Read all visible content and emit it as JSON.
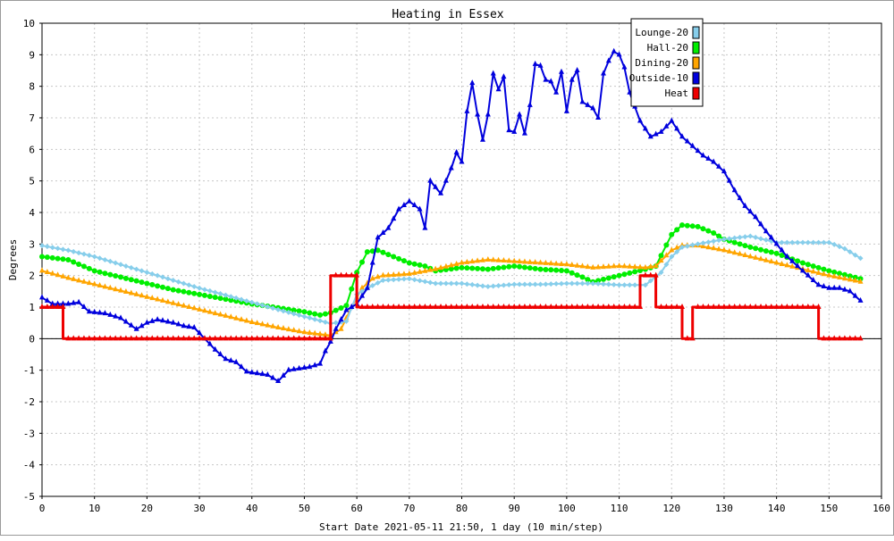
{
  "chart_data": {
    "type": "line",
    "title": "Heating in Essex",
    "xlabel": "Start Date 2021-05-11 21:50, 1 day (10 min/step)",
    "ylabel": "Degrees",
    "xlim": [
      0,
      160
    ],
    "ylim": [
      -5,
      10
    ],
    "xticks": [
      0,
      10,
      20,
      30,
      40,
      50,
      60,
      70,
      80,
      90,
      100,
      110,
      120,
      130,
      140,
      150,
      160
    ],
    "yticks": [
      -5,
      -4,
      -3,
      -2,
      -1,
      0,
      1,
      2,
      3,
      4,
      5,
      6,
      7,
      8,
      9,
      10
    ],
    "grid": true,
    "legend_position": "top-right",
    "series": [
      {
        "name": "Lounge-20",
        "color": "#87ceeb",
        "marker": "diamond",
        "points": [
          [
            0,
            2.95
          ],
          [
            5,
            2.8
          ],
          [
            10,
            2.6
          ],
          [
            15,
            2.35
          ],
          [
            20,
            2.1
          ],
          [
            25,
            1.85
          ],
          [
            30,
            1.6
          ],
          [
            35,
            1.38
          ],
          [
            40,
            1.15
          ],
          [
            45,
            0.92
          ],
          [
            50,
            0.7
          ],
          [
            55,
            0.48
          ],
          [
            58,
            0.55
          ],
          [
            60,
            1.4
          ],
          [
            62,
            1.6
          ],
          [
            65,
            1.85
          ],
          [
            70,
            1.9
          ],
          [
            75,
            1.75
          ],
          [
            80,
            1.75
          ],
          [
            85,
            1.65
          ],
          [
            90,
            1.72
          ],
          [
            95,
            1.72
          ],
          [
            100,
            1.75
          ],
          [
            105,
            1.75
          ],
          [
            110,
            1.7
          ],
          [
            115,
            1.7
          ],
          [
            118,
            2.1
          ],
          [
            120,
            2.6
          ],
          [
            122,
            2.9
          ],
          [
            125,
            3.0
          ],
          [
            130,
            3.15
          ],
          [
            135,
            3.25
          ],
          [
            140,
            3.05
          ],
          [
            145,
            3.05
          ],
          [
            150,
            3.05
          ],
          [
            153,
            2.85
          ],
          [
            156,
            2.55
          ]
        ]
      },
      {
        "name": "Hall-20",
        "color": "#00ee00",
        "marker": "circle",
        "points": [
          [
            0,
            2.6
          ],
          [
            5,
            2.5
          ],
          [
            10,
            2.15
          ],
          [
            15,
            1.95
          ],
          [
            20,
            1.75
          ],
          [
            25,
            1.55
          ],
          [
            30,
            1.4
          ],
          [
            35,
            1.25
          ],
          [
            40,
            1.1
          ],
          [
            45,
            0.98
          ],
          [
            50,
            0.85
          ],
          [
            53,
            0.75
          ],
          [
            55,
            0.82
          ],
          [
            58,
            1.05
          ],
          [
            60,
            2.1
          ],
          [
            62,
            2.75
          ],
          [
            64,
            2.8
          ],
          [
            67,
            2.6
          ],
          [
            70,
            2.4
          ],
          [
            73,
            2.3
          ],
          [
            75,
            2.15
          ],
          [
            80,
            2.25
          ],
          [
            85,
            2.2
          ],
          [
            90,
            2.3
          ],
          [
            95,
            2.2
          ],
          [
            100,
            2.15
          ],
          [
            103,
            1.95
          ],
          [
            105,
            1.8
          ],
          [
            110,
            2.0
          ],
          [
            115,
            2.2
          ],
          [
            117,
            2.3
          ],
          [
            120,
            3.3
          ],
          [
            122,
            3.6
          ],
          [
            125,
            3.55
          ],
          [
            128,
            3.35
          ],
          [
            130,
            3.15
          ],
          [
            135,
            2.9
          ],
          [
            140,
            2.7
          ],
          [
            145,
            2.4
          ],
          [
            150,
            2.15
          ],
          [
            156,
            1.9
          ]
        ]
      },
      {
        "name": "Dining-20",
        "color": "#ffa500",
        "marker": "triangle",
        "points": [
          [
            0,
            2.15
          ],
          [
            5,
            1.92
          ],
          [
            10,
            1.72
          ],
          [
            15,
            1.52
          ],
          [
            20,
            1.32
          ],
          [
            25,
            1.12
          ],
          [
            30,
            0.92
          ],
          [
            35,
            0.72
          ],
          [
            40,
            0.52
          ],
          [
            45,
            0.35
          ],
          [
            50,
            0.2
          ],
          [
            55,
            0.1
          ],
          [
            57,
            0.3
          ],
          [
            59,
            1.0
          ],
          [
            61,
            1.6
          ],
          [
            63,
            1.9
          ],
          [
            65,
            2.0
          ],
          [
            70,
            2.05
          ],
          [
            75,
            2.2
          ],
          [
            80,
            2.4
          ],
          [
            85,
            2.5
          ],
          [
            90,
            2.45
          ],
          [
            95,
            2.4
          ],
          [
            100,
            2.35
          ],
          [
            105,
            2.25
          ],
          [
            110,
            2.3
          ],
          [
            115,
            2.25
          ],
          [
            117,
            2.3
          ],
          [
            120,
            2.8
          ],
          [
            122,
            2.95
          ],
          [
            125,
            2.95
          ],
          [
            130,
            2.8
          ],
          [
            135,
            2.6
          ],
          [
            140,
            2.4
          ],
          [
            145,
            2.2
          ],
          [
            150,
            2.0
          ],
          [
            156,
            1.8
          ]
        ]
      },
      {
        "name": "Outside-10",
        "color": "#0000dd",
        "marker": "triangle",
        "points": [
          [
            0,
            1.3
          ],
          [
            2,
            1.1
          ],
          [
            5,
            1.1
          ],
          [
            7,
            1.15
          ],
          [
            9,
            0.85
          ],
          [
            12,
            0.8
          ],
          [
            15,
            0.65
          ],
          [
            18,
            0.3
          ],
          [
            20,
            0.5
          ],
          [
            22,
            0.6
          ],
          [
            25,
            0.5
          ],
          [
            27,
            0.4
          ],
          [
            29,
            0.35
          ],
          [
            31,
            0.0
          ],
          [
            33,
            -0.35
          ],
          [
            35,
            -0.65
          ],
          [
            37,
            -0.75
          ],
          [
            39,
            -1.05
          ],
          [
            41,
            -1.1
          ],
          [
            43,
            -1.15
          ],
          [
            45,
            -1.35
          ],
          [
            47,
            -1.0
          ],
          [
            49,
            -0.95
          ],
          [
            51,
            -0.9
          ],
          [
            53,
            -0.8
          ],
          [
            54,
            -0.4
          ],
          [
            55,
            -0.1
          ],
          [
            56,
            0.3
          ],
          [
            58,
            0.9
          ],
          [
            60,
            1.1
          ],
          [
            62,
            1.6
          ],
          [
            64,
            3.2
          ],
          [
            66,
            3.5
          ],
          [
            68,
            4.1
          ],
          [
            70,
            4.35
          ],
          [
            72,
            4.1
          ],
          [
            73,
            3.5
          ],
          [
            74,
            5.0
          ],
          [
            76,
            4.6
          ],
          [
            78,
            5.4
          ],
          [
            79,
            5.9
          ],
          [
            80,
            5.6
          ],
          [
            81,
            7.2
          ],
          [
            82,
            8.1
          ],
          [
            83,
            7.1
          ],
          [
            84,
            6.3
          ],
          [
            85,
            7.1
          ],
          [
            86,
            8.4
          ],
          [
            87,
            7.9
          ],
          [
            88,
            8.3
          ],
          [
            89,
            6.6
          ],
          [
            90,
            6.55
          ],
          [
            91,
            7.1
          ],
          [
            92,
            6.5
          ],
          [
            93,
            7.4
          ],
          [
            94,
            8.7
          ],
          [
            95,
            8.65
          ],
          [
            96,
            8.2
          ],
          [
            97,
            8.15
          ],
          [
            98,
            7.8
          ],
          [
            99,
            8.45
          ],
          [
            100,
            7.2
          ],
          [
            101,
            8.2
          ],
          [
            102,
            8.5
          ],
          [
            103,
            7.5
          ],
          [
            105,
            7.3
          ],
          [
            106,
            7.0
          ],
          [
            107,
            8.4
          ],
          [
            108,
            8.8
          ],
          [
            109,
            9.1
          ],
          [
            110,
            9.0
          ],
          [
            111,
            8.6
          ],
          [
            112,
            7.8
          ],
          [
            114,
            6.9
          ],
          [
            116,
            6.4
          ],
          [
            118,
            6.55
          ],
          [
            120,
            6.9
          ],
          [
            122,
            6.4
          ],
          [
            124,
            6.1
          ],
          [
            126,
            5.8
          ],
          [
            128,
            5.6
          ],
          [
            130,
            5.3
          ],
          [
            132,
            4.7
          ],
          [
            134,
            4.2
          ],
          [
            136,
            3.85
          ],
          [
            138,
            3.4
          ],
          [
            140,
            3.0
          ],
          [
            142,
            2.6
          ],
          [
            144,
            2.3
          ],
          [
            146,
            2.0
          ],
          [
            148,
            1.7
          ],
          [
            150,
            1.6
          ],
          [
            152,
            1.6
          ],
          [
            154,
            1.5
          ],
          [
            156,
            1.2
          ]
        ]
      },
      {
        "name": "Heat",
        "color": "#ee0000",
        "marker": "triangle",
        "points": [
          [
            0,
            1
          ],
          [
            4,
            1
          ],
          [
            4,
            0
          ],
          [
            55,
            0
          ],
          [
            55,
            2
          ],
          [
            60,
            2
          ],
          [
            60,
            1
          ],
          [
            114,
            1
          ],
          [
            114,
            2
          ],
          [
            117,
            2
          ],
          [
            117,
            1
          ],
          [
            122,
            1
          ],
          [
            122,
            0
          ],
          [
            124,
            0
          ],
          [
            124,
            1
          ],
          [
            148,
            1
          ],
          [
            148,
            0
          ],
          [
            156,
            0
          ]
        ]
      }
    ]
  }
}
